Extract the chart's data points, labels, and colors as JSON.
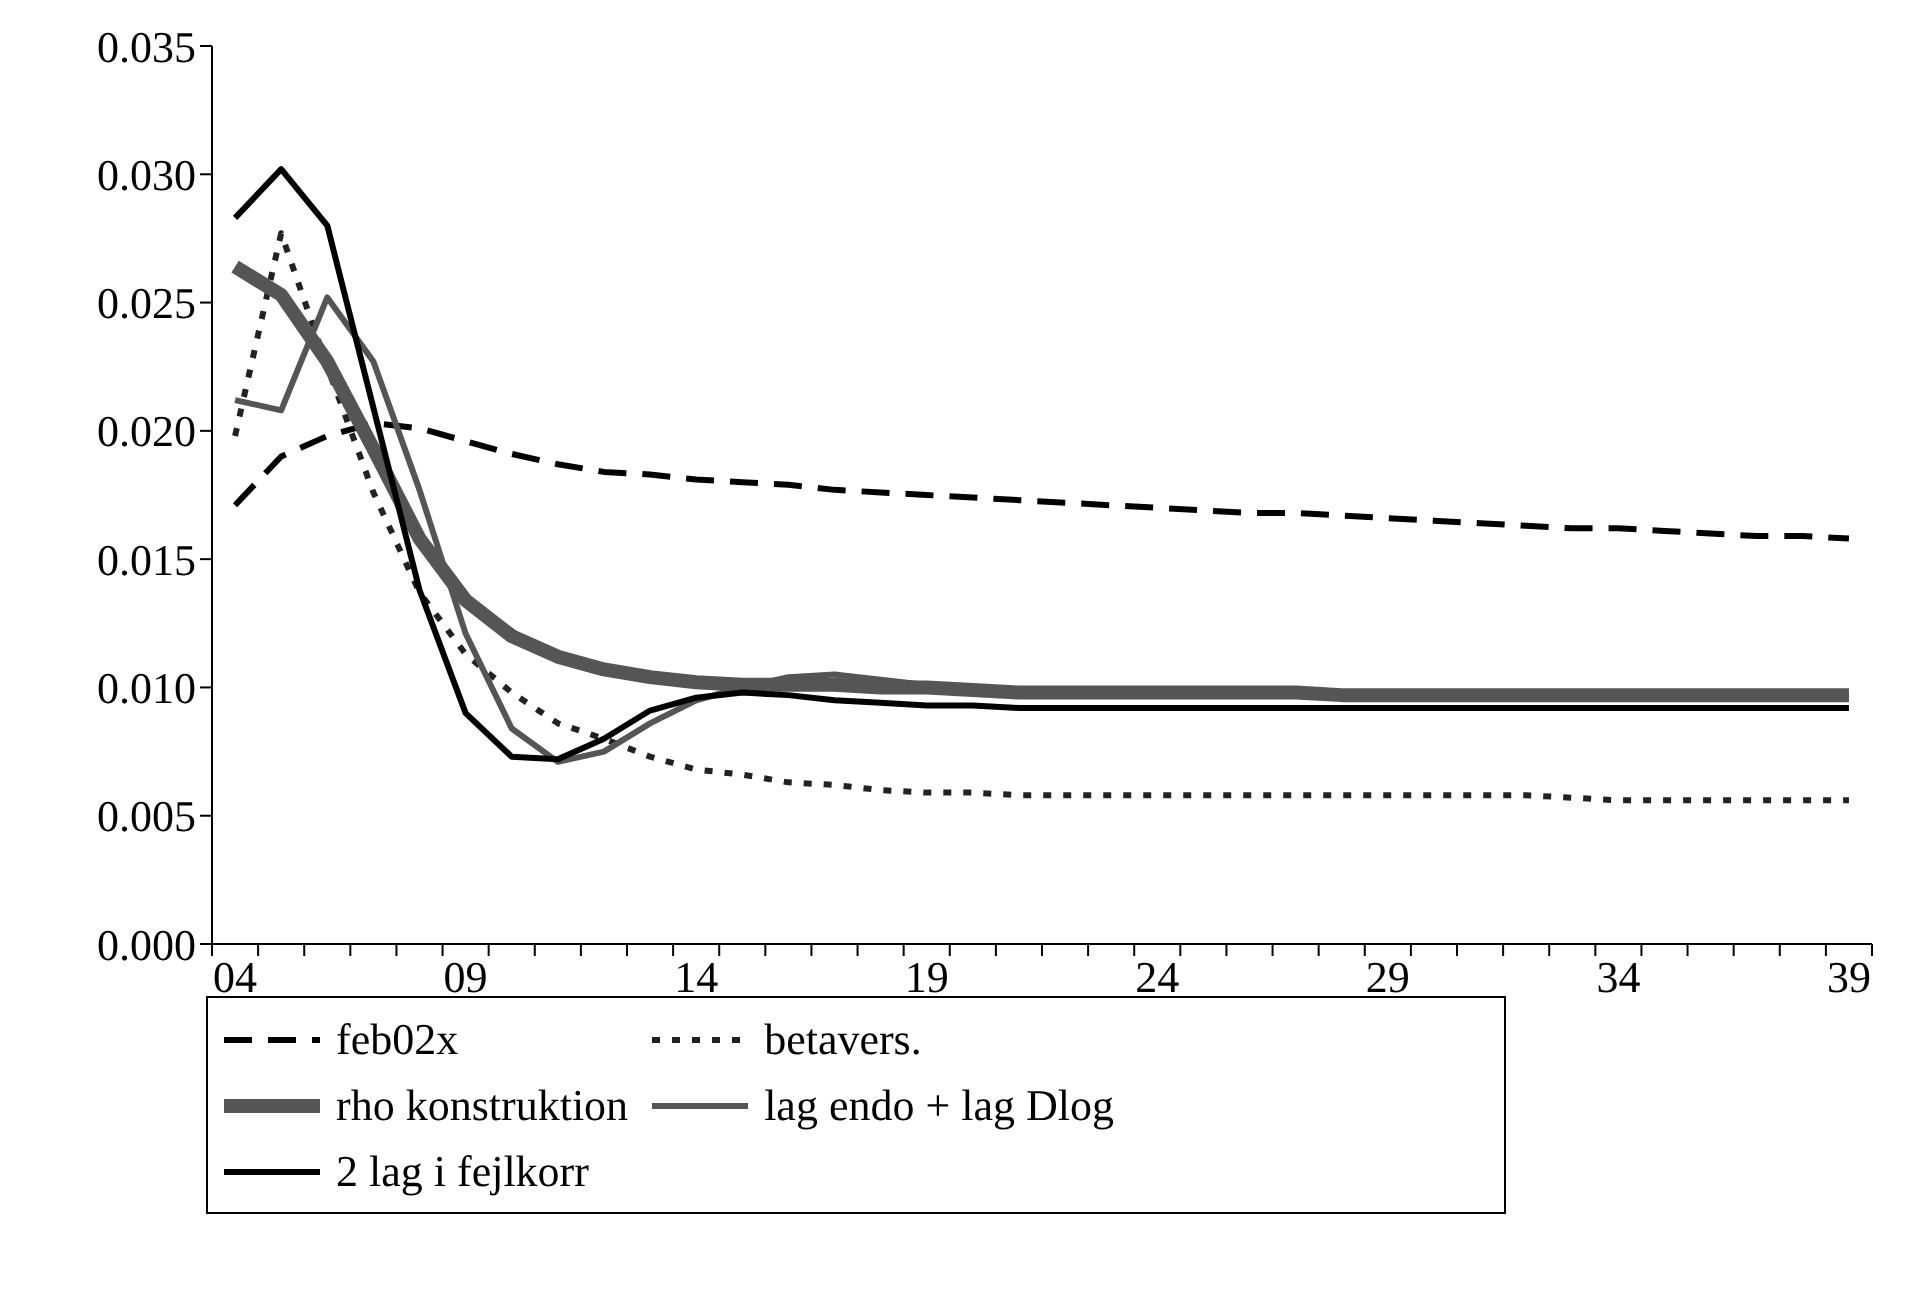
{
  "chart_data": {
    "type": "line",
    "categories": [
      "04",
      null,
      null,
      null,
      null,
      "09",
      null,
      null,
      null,
      null,
      "14",
      null,
      null,
      null,
      null,
      "19",
      null,
      null,
      null,
      null,
      "24",
      null,
      null,
      null,
      null,
      "29",
      null,
      null,
      null,
      null,
      "34",
      null,
      null,
      null,
      null,
      "39"
    ],
    "series": [
      {
        "name": "feb02x",
        "color": "#000000",
        "line_style": "dashed",
        "values": [
          0.0171,
          0.019,
          0.0198,
          0.0203,
          0.0201,
          0.0196,
          0.0191,
          0.0187,
          0.0184,
          0.0183,
          0.0181,
          0.018,
          0.0179,
          0.0177,
          0.0176,
          0.0175,
          0.0174,
          0.0173,
          0.0172,
          0.0171,
          0.017,
          0.0169,
          0.0168,
          0.0168,
          0.0167,
          0.0166,
          0.0165,
          0.0164,
          0.0163,
          0.0162,
          0.0162,
          0.0161,
          0.016,
          0.0159,
          0.0159,
          0.0158
        ]
      },
      {
        "name": "betavers.",
        "color": "#222222",
        "line_style": "dotted",
        "values": [
          0.0198,
          0.0277,
          0.0225,
          0.0176,
          0.0137,
          0.0113,
          0.0098,
          0.0086,
          0.008,
          0.0073,
          0.0068,
          0.0066,
          0.0063,
          0.0062,
          0.006,
          0.0059,
          0.0059,
          0.0058,
          0.0058,
          0.0058,
          0.0058,
          0.0058,
          0.0058,
          0.0058,
          0.0058,
          0.0058,
          0.0058,
          0.0058,
          0.0058,
          0.0057,
          0.0056,
          0.0056,
          0.0056,
          0.0056,
          0.0056,
          0.0056
        ]
      },
      {
        "name": "rho konstruktion",
        "color": "#555555",
        "line_style": "solid",
        "values": [
          0.0264,
          0.0253,
          0.0227,
          0.0193,
          0.0158,
          0.0134,
          0.012,
          0.0112,
          0.0107,
          0.0104,
          0.0102,
          0.0101,
          0.0101,
          0.0101,
          0.01,
          0.01,
          0.0099,
          0.0098,
          0.0098,
          0.0098,
          0.0098,
          0.0098,
          0.0098,
          0.0098,
          0.0097,
          0.0097,
          0.0097,
          0.0097,
          0.0097,
          0.0097,
          0.0097,
          0.0097,
          0.0097,
          0.0097,
          0.0097,
          0.0097
        ]
      },
      {
        "name": "lag endo + lag Dlog",
        "color": "#555555",
        "line_style": "solid",
        "values": [
          0.0212,
          0.0208,
          0.0252,
          0.0227,
          0.0177,
          0.0121,
          0.0084,
          0.0071,
          0.0075,
          0.0086,
          0.0095,
          0.01,
          0.0104,
          0.0105,
          0.0103,
          0.0101,
          0.01,
          0.0099,
          0.0098,
          0.0098,
          0.0098,
          0.0098,
          0.0098,
          0.0098,
          0.0097,
          0.0097,
          0.0097,
          0.0097,
          0.0097,
          0.0097,
          0.0097,
          0.0097,
          0.0097,
          0.0097,
          0.0097,
          0.0097
        ]
      },
      {
        "name": "2 lag i fejlkorr",
        "color": "#000000",
        "line_style": "solid",
        "values": [
          0.0283,
          0.0302,
          0.028,
          0.0209,
          0.0138,
          0.009,
          0.0073,
          0.0072,
          0.008,
          0.0091,
          0.0096,
          0.0098,
          0.0097,
          0.0095,
          0.0094,
          0.0093,
          0.0093,
          0.0092,
          0.0092,
          0.0092,
          0.0092,
          0.0092,
          0.0092,
          0.0092,
          0.0092,
          0.0092,
          0.0092,
          0.0092,
          0.0092,
          0.0092,
          0.0092,
          0.0092,
          0.0092,
          0.0092,
          0.0092,
          0.0092
        ]
      }
    ],
    "ylim": [
      0,
      0.035
    ],
    "yticks": [
      {
        "value": 0,
        "label": "0.000"
      },
      {
        "value": 0.005,
        "label": "0.005"
      },
      {
        "value": 0.01,
        "label": "0.010"
      },
      {
        "value": 0.015,
        "label": "0.015"
      },
      {
        "value": 0.02,
        "label": "0.020"
      },
      {
        "value": 0.025,
        "label": "0.025"
      },
      {
        "value": 0.03,
        "label": "0.030"
      },
      {
        "value": 0.035,
        "label": "0.035"
      }
    ],
    "grid": false,
    "marker": "none",
    "legend": "bottom"
  }
}
